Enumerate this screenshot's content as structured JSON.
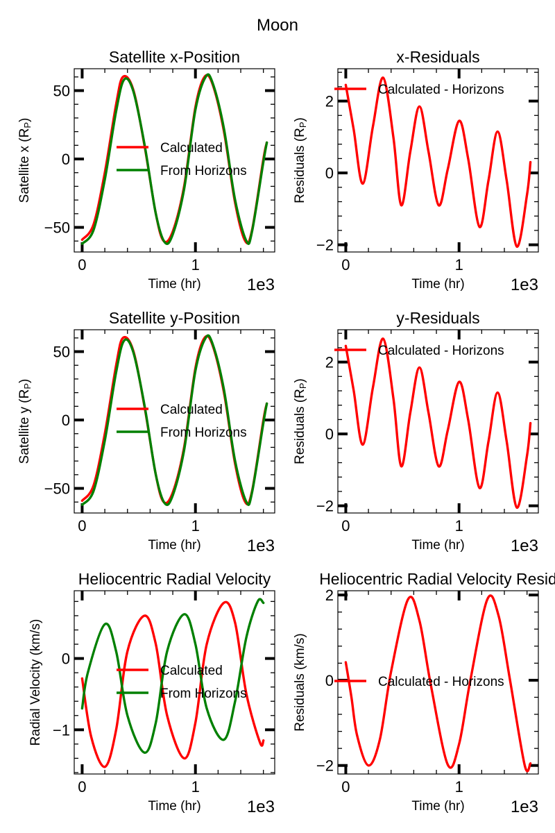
{
  "figure": {
    "suptitle": "Moon"
  },
  "colors": {
    "calculated": "#ff0000",
    "horizons": "#008000",
    "axis": "#000000"
  },
  "chart_data": [
    {
      "type": "line",
      "title": "Satellite x-Position",
      "xlabel": "Time (hr)",
      "ylabel": "Satellite x (R",
      "ylabel_sub": "P",
      "ylabel_close": ")",
      "x_offset_label": "1e3",
      "xlim": [
        -0.07,
        1.7
      ],
      "ylim": [
        -68,
        66
      ],
      "xticks": [
        0,
        1
      ],
      "xtick_labels": [
        "0",
        "1"
      ],
      "yticks": [
        -50,
        0,
        50
      ],
      "ytick_labels": [
        "−50",
        "0",
        "50"
      ],
      "legend_loc": "center-right",
      "series": [
        {
          "name": "Calculated",
          "color": "#ff0000",
          "x": [
            0,
            0.1,
            0.2,
            0.3,
            0.36,
            0.45,
            0.55,
            0.65,
            0.72,
            0.8,
            0.9,
            1.0,
            1.08,
            1.15,
            1.25,
            1.35,
            1.44,
            1.5,
            1.6,
            1.63
          ],
          "y": [
            -59,
            -48,
            -10,
            40,
            60,
            51,
            10,
            -40,
            -60,
            -53,
            -20,
            38,
            60,
            55,
            21,
            -32,
            -60,
            -52,
            0,
            12
          ]
        },
        {
          "name": "From Horizons",
          "color": "#008000",
          "x": [
            0,
            0.1,
            0.2,
            0.3,
            0.37,
            0.45,
            0.55,
            0.65,
            0.73,
            0.8,
            0.9,
            1.0,
            1.09,
            1.15,
            1.25,
            1.35,
            1.45,
            1.5,
            1.6,
            1.63
          ],
          "y": [
            -62,
            -52,
            -15,
            35,
            58,
            50,
            11,
            -40,
            -61,
            -55,
            -22,
            36,
            60,
            56,
            23,
            -30,
            -60,
            -53,
            -2,
            12
          ]
        }
      ]
    },
    {
      "type": "line",
      "title": "x-Residuals",
      "xlabel": "Time (hr)",
      "ylabel": "Residuals (R",
      "ylabel_sub": "P",
      "ylabel_close": ")",
      "x_offset_label": "1e3",
      "xlim": [
        -0.07,
        1.7
      ],
      "ylim": [
        -2.2,
        2.9
      ],
      "xticks": [
        0,
        1
      ],
      "xtick_labels": [
        "0",
        "1"
      ],
      "yticks": [
        -2,
        0,
        2
      ],
      "ytick_labels": [
        "−2",
        "0",
        "2"
      ],
      "legend_loc": "upper-right",
      "series": [
        {
          "name": "Calculated - Horizons",
          "color": "#ff0000",
          "x": [
            0,
            0.07,
            0.15,
            0.24,
            0.33,
            0.42,
            0.49,
            0.57,
            0.65,
            0.73,
            0.82,
            0.9,
            1.0,
            1.08,
            1.18,
            1.26,
            1.34,
            1.42,
            1.51,
            1.6,
            1.63
          ],
          "y": [
            2.45,
            1.2,
            -0.3,
            1.3,
            2.65,
            1.0,
            -0.9,
            0.6,
            1.85,
            0.6,
            -0.9,
            0.1,
            1.45,
            0.4,
            -1.5,
            -0.2,
            1.15,
            -0.2,
            -2.05,
            -0.6,
            0.3
          ]
        }
      ]
    },
    {
      "type": "line",
      "title": "Satellite y-Position",
      "xlabel": "Time (hr)",
      "ylabel": "Satellite y (R",
      "ylabel_sub": "P",
      "ylabel_close": ")",
      "x_offset_label": "1e3",
      "xlim": [
        -0.07,
        1.7
      ],
      "ylim": [
        -68,
        66
      ],
      "xticks": [
        0,
        1
      ],
      "xtick_labels": [
        "0",
        "1"
      ],
      "yticks": [
        -50,
        0,
        50
      ],
      "ytick_labels": [
        "−50",
        "0",
        "50"
      ],
      "legend_loc": "center-right",
      "series": [
        {
          "name": "Calculated",
          "color": "#ff0000",
          "x": [
            0,
            0.1,
            0.2,
            0.3,
            0.36,
            0.45,
            0.55,
            0.65,
            0.72,
            0.8,
            0.9,
            1.0,
            1.08,
            1.15,
            1.25,
            1.35,
            1.44,
            1.5,
            1.6,
            1.63
          ],
          "y": [
            -59,
            -48,
            -10,
            40,
            60,
            51,
            10,
            -40,
            -60,
            -53,
            -20,
            38,
            60,
            55,
            21,
            -32,
            -60,
            -52,
            0,
            12
          ]
        },
        {
          "name": "From Horizons",
          "color": "#008000",
          "x": [
            0,
            0.1,
            0.2,
            0.3,
            0.37,
            0.45,
            0.55,
            0.65,
            0.73,
            0.8,
            0.9,
            1.0,
            1.09,
            1.15,
            1.25,
            1.35,
            1.45,
            1.5,
            1.6,
            1.63
          ],
          "y": [
            -62,
            -52,
            -15,
            35,
            58,
            50,
            11,
            -40,
            -61,
            -55,
            -22,
            36,
            60,
            56,
            23,
            -30,
            -60,
            -53,
            -2,
            12
          ]
        }
      ]
    },
    {
      "type": "line",
      "title": "y-Residuals",
      "xlabel": "Time (hr)",
      "ylabel": "Residuals (R",
      "ylabel_sub": "P",
      "ylabel_close": ")",
      "x_offset_label": "1e3",
      "xlim": [
        -0.07,
        1.7
      ],
      "ylim": [
        -2.2,
        2.9
      ],
      "xticks": [
        0,
        1
      ],
      "xtick_labels": [
        "0",
        "1"
      ],
      "yticks": [
        -2,
        0,
        2
      ],
      "ytick_labels": [
        "−2",
        "0",
        "2"
      ],
      "legend_loc": "upper-right",
      "series": [
        {
          "name": "Calculated - Horizons",
          "color": "#ff0000",
          "x": [
            0,
            0.07,
            0.15,
            0.24,
            0.33,
            0.42,
            0.49,
            0.57,
            0.65,
            0.73,
            0.82,
            0.9,
            1.0,
            1.08,
            1.18,
            1.26,
            1.34,
            1.42,
            1.51,
            1.6,
            1.63
          ],
          "y": [
            2.45,
            1.2,
            -0.3,
            1.3,
            2.65,
            1.0,
            -0.9,
            0.6,
            1.85,
            0.6,
            -0.9,
            0.1,
            1.45,
            0.4,
            -1.5,
            -0.2,
            1.15,
            -0.2,
            -2.05,
            -0.6,
            0.3
          ]
        }
      ]
    },
    {
      "type": "line",
      "title": "Heliocentric Radial Velocity",
      "xlabel": "Time (hr)",
      "ylabel": "Radial Velocity (km/s)",
      "ylabel_sub": "",
      "ylabel_close": "",
      "x_offset_label": "1e3",
      "xlim": [
        -0.07,
        1.7
      ],
      "ylim": [
        -1.62,
        0.95
      ],
      "xticks": [
        0,
        1
      ],
      "xtick_labels": [
        "0",
        "1"
      ],
      "yticks": [
        -1,
        0
      ],
      "ytick_labels": [
        "−1",
        "0"
      ],
      "legend_loc": "center-right",
      "series": [
        {
          "name": "Calculated",
          "color": "#ff0000",
          "x": [
            0,
            0.08,
            0.2,
            0.3,
            0.4,
            0.55,
            0.65,
            0.75,
            0.9,
            1.0,
            1.1,
            1.25,
            1.35,
            1.45,
            1.57,
            1.6
          ],
          "y": [
            -0.28,
            -1.1,
            -1.52,
            -1.0,
            0.1,
            0.6,
            0.2,
            -0.8,
            -1.4,
            -0.9,
            0.2,
            0.78,
            0.5,
            -0.5,
            -1.18,
            -1.15
          ]
        },
        {
          "name": "From Horizons",
          "color": "#008000",
          "x": [
            0,
            0.05,
            0.2,
            0.3,
            0.4,
            0.55,
            0.65,
            0.75,
            0.9,
            1.0,
            1.1,
            1.25,
            1.35,
            1.45,
            1.55,
            1.6
          ],
          "y": [
            -0.7,
            -0.2,
            0.48,
            0.1,
            -0.8,
            -1.32,
            -0.9,
            0.1,
            0.62,
            0.2,
            -0.7,
            -1.14,
            -0.6,
            0.3,
            0.8,
            0.78
          ]
        }
      ]
    },
    {
      "type": "line",
      "title": "Heliocentric Radial Velocity Resid",
      "xlabel": "Time (hr)",
      "ylabel": "Residuals (km/s)",
      "ylabel_sub": "",
      "ylabel_close": "",
      "x_offset_label": "1e3",
      "xlim": [
        -0.07,
        1.7
      ],
      "ylim": [
        -2.2,
        2.1
      ],
      "xticks": [
        0,
        1
      ],
      "xtick_labels": [
        "0",
        "1"
      ],
      "yticks": [
        -2,
        0,
        2
      ],
      "ytick_labels": [
        "−2",
        "0",
        "2"
      ],
      "legend_loc": "center-right",
      "series": [
        {
          "name": "Calculated - Horizons",
          "color": "#ff0000",
          "x": [
            0,
            0.05,
            0.1,
            0.2,
            0.3,
            0.4,
            0.55,
            0.65,
            0.75,
            0.9,
            1.0,
            1.1,
            1.25,
            1.35,
            1.45,
            1.58,
            1.63
          ],
          "y": [
            0.42,
            -0.4,
            -1.3,
            -2.0,
            -1.4,
            0.2,
            1.9,
            1.4,
            -0.1,
            -1.98,
            -1.5,
            0.0,
            1.9,
            1.5,
            0.0,
            -2.0,
            -1.95
          ]
        }
      ]
    }
  ]
}
